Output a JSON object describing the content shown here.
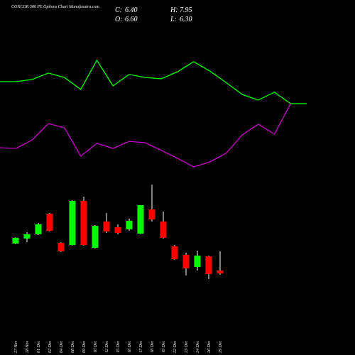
{
  "header": {
    "close_label": "C:",
    "close": "6.40",
    "high_label": "H:",
    "high": "7.95",
    "open_label": "O:",
    "open": "6.60",
    "low_label": "L:",
    "low": "6.30"
  },
  "chart_data": [
    {
      "type": "line",
      "title": "CONCOR 500 PE Options Chart Munafasutra.com",
      "categories": [
        null,
        null,
        null,
        null,
        null,
        null,
        null,
        null,
        null,
        null,
        null,
        null,
        null,
        null,
        null,
        null,
        null,
        null,
        null,
        null
      ],
      "ylim": [
        0,
        100
      ],
      "series": [
        {
          "name": null,
          "color": "#00ff00",
          "values": [
            75,
            75,
            76.7,
            81.7,
            78.3,
            68.9,
            91.7,
            71.7,
            80.6,
            78.3,
            77.2,
            82.8,
            90.6,
            83.3,
            74.4,
            65,
            60.6,
            66.7,
            57.8,
            57.8
          ]
        },
        {
          "name": null,
          "color": "#cc00cc",
          "values": [
            23.3,
            22.8,
            29.4,
            42.2,
            38.9,
            16.7,
            26.7,
            22.8,
            28.3,
            27.2,
            21.1,
            15,
            8.3,
            12.2,
            18.9,
            33.3,
            41.7,
            33.9,
            57.8,
            null
          ]
        }
      ]
    },
    {
      "type": "candlestick",
      "categories": [
        "27 Nov",
        "28 Nov",
        "01 Dec",
        "02 Dec",
        "04 Dec",
        "08 Dec",
        "09 Dec",
        "10 Dec",
        "12 Dec",
        "15 Dec",
        "16 Dec",
        "17 Dec",
        "18 Dec",
        "19 Dec",
        "22 Dec",
        "23 Dec",
        "24 Dec",
        "26 Dec",
        "29 Dec"
      ],
      "ylim": [
        5.9,
        12.65
      ],
      "up_color": "#00ff00",
      "down_color": "#ff0000",
      "open": [
        8.5,
        8.85,
        9.15,
        10.6,
        8.55,
        8.4,
        11.5,
        8.2,
        10.05,
        9.65,
        9.5,
        9.2,
        10.9,
        10.05,
        8.3,
        7.7,
        6.85,
        7.6,
        6.6
      ],
      "high": [
        8.95,
        9.3,
        9.95,
        10.65,
        8.6,
        11.55,
        11.8,
        9.8,
        10.65,
        9.85,
        10.25,
        11.2,
        12.65,
        10.75,
        8.4,
        7.85,
        8.0,
        7.65,
        7.95
      ],
      "low": [
        8.45,
        8.6,
        9.1,
        9.35,
        7.9,
        8.35,
        8.35,
        8.15,
        9.25,
        9.15,
        9.4,
        9.15,
        10.05,
        8.85,
        7.35,
        6.25,
        6.6,
        6.0,
        6.3
      ],
      "close": [
        8.9,
        9.15,
        9.85,
        9.4,
        7.95,
        11.5,
        8.4,
        9.75,
        9.35,
        9.25,
        10.1,
        11.2,
        10.2,
        8.9,
        7.4,
        6.75,
        7.65,
        6.35,
        6.4
      ]
    }
  ]
}
